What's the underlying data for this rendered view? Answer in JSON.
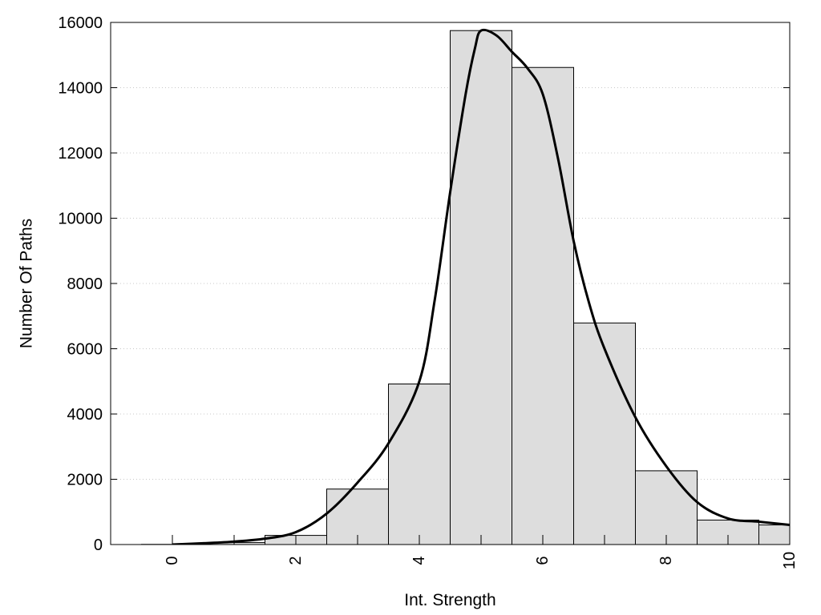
{
  "chart_data": {
    "type": "bar",
    "xlabel": "Int. Strength",
    "ylabel": "Number Of Paths",
    "xlim": [
      -1,
      10
    ],
    "ylim": [
      0,
      16000
    ],
    "x_ticks": [
      0,
      2,
      4,
      6,
      8,
      10
    ],
    "y_ticks": [
      0,
      2000,
      4000,
      6000,
      8000,
      10000,
      12000,
      14000,
      16000
    ],
    "grid": "horizontal dotted",
    "bar_color": "#dddddd",
    "bars": [
      {
        "x": 0,
        "value": 5
      },
      {
        "x": 1,
        "value": 60
      },
      {
        "x": 2,
        "value": 280
      },
      {
        "x": 3,
        "value": 1700
      },
      {
        "x": 4,
        "value": 4920
      },
      {
        "x": 5,
        "value": 15750
      },
      {
        "x": 6,
        "value": 14620
      },
      {
        "x": 7,
        "value": 6790
      },
      {
        "x": 8,
        "value": 2260
      },
      {
        "x": 9,
        "value": 750
      },
      {
        "x": 10,
        "value": 600
      }
    ],
    "curve": {
      "x": [
        0,
        0.5,
        1,
        1.5,
        2,
        2.5,
        3,
        3.5,
        4,
        4.25,
        4.5,
        4.75,
        4.9,
        5,
        5.25,
        5.5,
        5.75,
        6,
        6.25,
        6.5,
        6.75,
        7,
        7.5,
        8,
        8.5,
        9,
        9.5,
        10
      ],
      "y": [
        0,
        40,
        90,
        180,
        380,
        950,
        1900,
        3100,
        5000,
        7500,
        10800,
        13800,
        15200,
        15750,
        15600,
        15100,
        14600,
        13800,
        11800,
        9300,
        7400,
        6000,
        3900,
        2400,
        1300,
        800,
        700,
        600
      ]
    }
  }
}
